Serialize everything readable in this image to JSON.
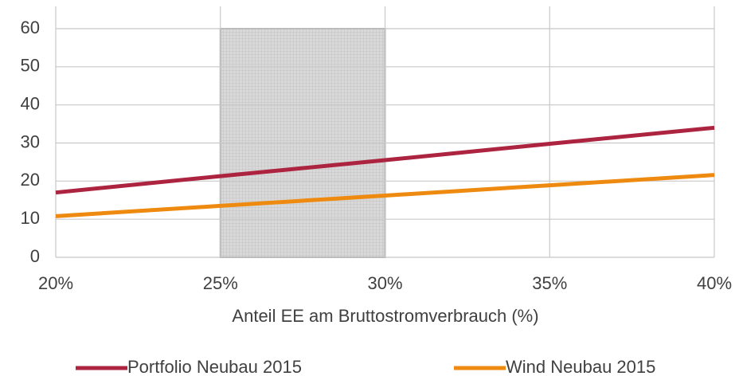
{
  "chart_data": {
    "type": "line",
    "x_label": "Anteil EE am Bruttostromverbrauch (%)",
    "x": [
      20,
      25,
      30,
      35,
      40
    ],
    "series": [
      {
        "name": "Portfolio Neubau 2015",
        "color": "#ad2440",
        "values": [
          17,
          21.3,
          25.5,
          29.8,
          34
        ]
      },
      {
        "name": "Wind Neubau 2015",
        "color": "#ee8a10",
        "values": [
          10.8,
          13.5,
          16.2,
          18.9,
          21.6
        ]
      }
    ],
    "highlight_range": [
      25,
      30
    ],
    "xlim": [
      20,
      40
    ],
    "xticks": [
      {
        "value": 20,
        "label": "20%"
      },
      {
        "value": 25,
        "label": "25%"
      },
      {
        "value": 30,
        "label": "30%"
      },
      {
        "value": 35,
        "label": "35%"
      },
      {
        "value": 40,
        "label": "40%"
      }
    ],
    "ylim": [
      0,
      60
    ],
    "yticks": [
      0,
      10,
      20,
      30,
      40,
      50,
      60
    ],
    "grid": true,
    "legend": "bottom"
  }
}
